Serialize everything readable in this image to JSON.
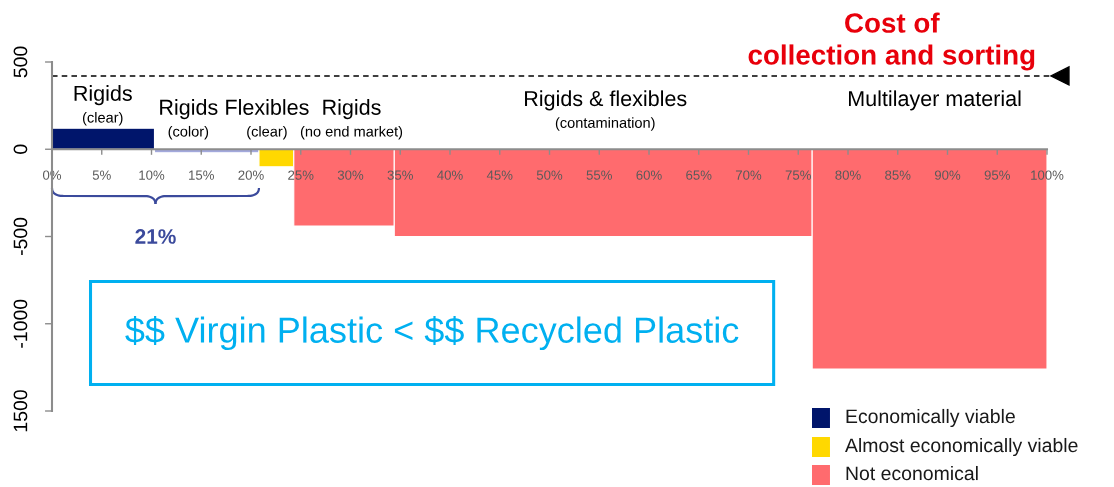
{
  "chart_data": {
    "type": "histogram",
    "bins": [
      0,
      10.3,
      20.8,
      24.3,
      34.4,
      76.4,
      100
    ],
    "values": [
      120,
      -20,
      -100,
      -440,
      -500,
      -1260
    ],
    "colors": [
      "#00156b",
      "#a3a9dc",
      "#ffd800",
      "#ff6b6e",
      "#ff6b6e",
      "#ff6b6e"
    ],
    "xlim": [
      0,
      100
    ],
    "xticks": [
      {
        "value": 0,
        "label": "0%"
      },
      {
        "value": 5,
        "label": "5%"
      },
      {
        "value": 10,
        "label": "10%"
      },
      {
        "value": 15,
        "label": "15%"
      },
      {
        "value": 20,
        "label": "20%"
      },
      {
        "value": 25,
        "label": "25%"
      },
      {
        "value": 30,
        "label": "30%"
      },
      {
        "value": 35,
        "label": "35%"
      },
      {
        "value": 40,
        "label": "40%"
      },
      {
        "value": 45,
        "label": "45%"
      },
      {
        "value": 50,
        "label": "50%"
      },
      {
        "value": 55,
        "label": "55%"
      },
      {
        "value": 60,
        "label": "60%"
      },
      {
        "value": 65,
        "label": "65%"
      },
      {
        "value": 70,
        "label": "70%"
      },
      {
        "value": 75,
        "label": "75%"
      },
      {
        "value": 80,
        "label": "80%"
      },
      {
        "value": 85,
        "label": "85%"
      },
      {
        "value": 90,
        "label": "90%"
      },
      {
        "value": 95,
        "label": "95%"
      },
      {
        "value": 100,
        "label": "100%"
      }
    ],
    "ylim": [
      -1500,
      500
    ],
    "yticks": [
      {
        "value": -1500,
        "label": "1500"
      },
      -1000,
      -500,
      0,
      500
    ],
    "ref_lines": [
      {
        "axis": "y",
        "value": 420,
        "label": "Cost of\ncollection and sorting",
        "color": "#000000",
        "line_style": "dashed"
      }
    ],
    "annotations": [
      "Rigids\n(clear)",
      "Rigids\n(color)",
      "Flexibles\n(clear)",
      "Rigids\n(no end market)",
      "Rigids & flexibles\n(contamination)",
      "Multilayer material",
      "21%",
      "$$ Virgin Plastic < $$ Recycled Plastic",
      "Economically viable",
      "Almost economically viable",
      "Not economical"
    ]
  }
}
